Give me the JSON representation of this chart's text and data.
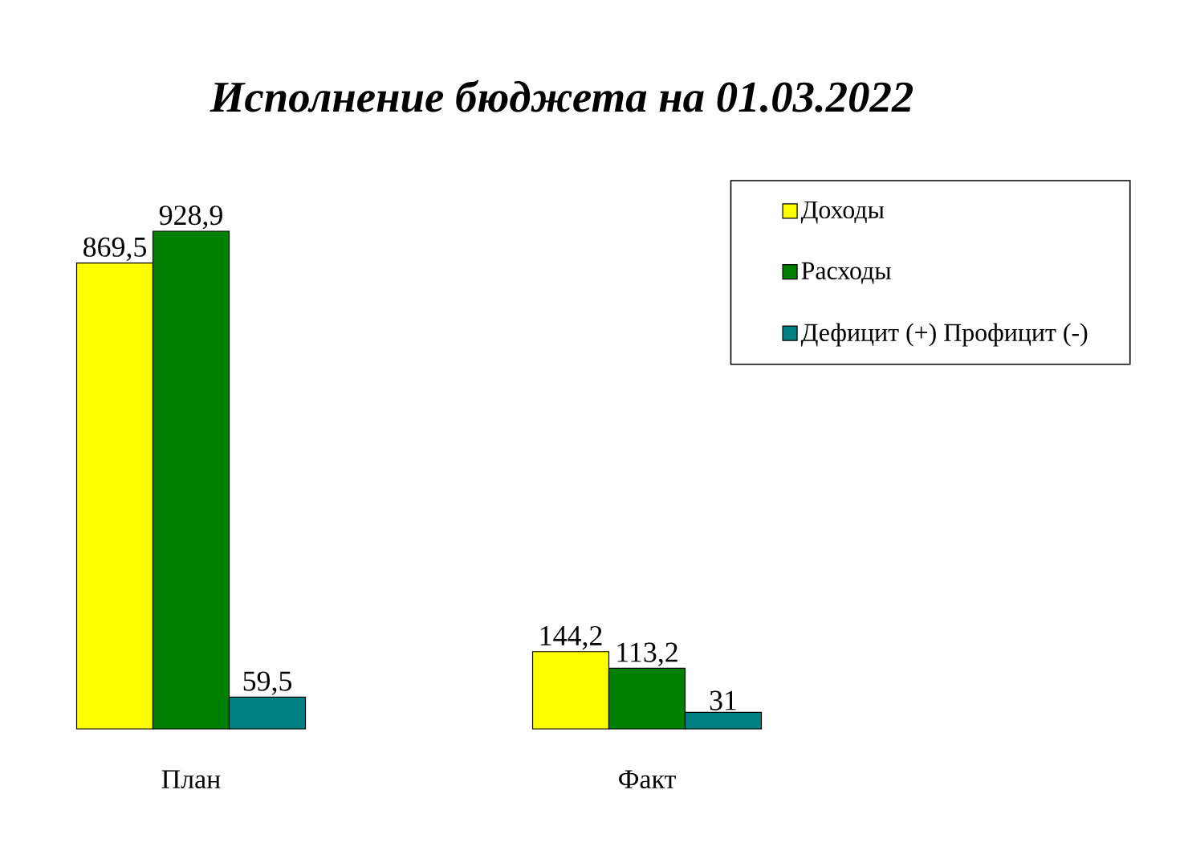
{
  "chart_data": {
    "type": "bar",
    "title": "Исполнение бюджета на 01.03.2022",
    "categories": [
      "План",
      "Факт"
    ],
    "series": [
      {
        "name": "Доходы",
        "color": "#ffff00",
        "values": [
          869.5,
          144.2
        ],
        "value_labels": [
          "869,5",
          "144,2"
        ]
      },
      {
        "name": "Расходы",
        "color": "#008000",
        "values": [
          928.9,
          113.2
        ],
        "value_labels": [
          "928,9",
          "113,2"
        ]
      },
      {
        "name": "Дефицит (+) Профицит (-)",
        "color": "#008080",
        "values": [
          59.5,
          31
        ],
        "value_labels": [
          "59,5",
          "31"
        ]
      }
    ],
    "legend": "top right",
    "tick_labels": "x"
  }
}
